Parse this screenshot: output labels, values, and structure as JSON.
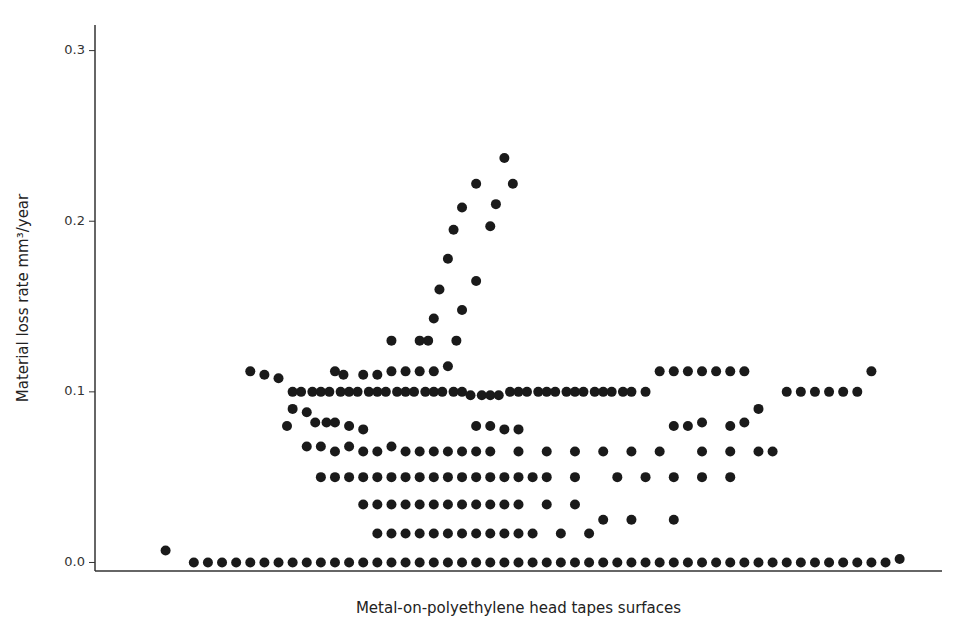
{
  "chart_data": {
    "type": "scatter",
    "xlabel": "Metal-on-polyethylene head tapes surfaces",
    "ylabel": "Material loss rate mm³/year",
    "xlim": [
      0,
      30
    ],
    "ylim": [
      -0.005,
      0.315
    ],
    "yticks": [
      {
        "value": 0.0,
        "label": "0.0"
      },
      0.1,
      0.2,
      0.3
    ],
    "tick_labels": "y",
    "grid": false,
    "color": "#1a1a1a",
    "background_color": "#ffffff",
    "x": [
      14.5,
      13.5,
      14.8,
      13.0,
      14.2,
      12.7,
      14.0,
      12.5,
      13.5,
      12.2,
      13.0,
      12.0,
      12.8,
      11.8,
      11.5,
      10.5,
      8.5,
      8.8,
      9.5,
      10.0,
      10.5,
      11.0,
      11.5,
      12.0,
      12.5,
      20.0,
      20.5,
      21.0,
      21.5,
      22.0,
      22.5,
      23.0,
      27.5,
      5.5,
      6.0,
      6.5,
      7.0,
      7.3,
      7.7,
      8.0,
      8.3,
      8.7,
      9.0,
      9.3,
      9.7,
      10.0,
      10.3,
      10.7,
      11.0,
      11.3,
      11.7,
      12.0,
      12.3,
      12.7,
      13.0,
      13.3,
      13.7,
      14.0,
      14.3,
      14.7,
      15.0,
      15.3,
      15.7,
      16.0,
      16.3,
      16.7,
      17.0,
      17.3,
      17.7,
      18.0,
      18.3,
      18.7,
      19.0,
      19.5,
      24.5,
      25.0,
      25.5,
      26.0,
      26.5,
      27.0,
      7.0,
      7.5,
      7.8,
      8.2,
      8.5,
      9.0,
      9.5,
      6.8,
      13.5,
      14.0,
      14.5,
      15.0,
      20.5,
      21.0,
      21.5,
      22.5,
      23.5,
      23.0,
      7.5,
      8.0,
      8.5,
      9.0,
      9.5,
      10.0,
      10.5,
      11.0,
      11.5,
      12.0,
      12.5,
      13.0,
      13.5,
      14.0,
      15.0,
      16.0,
      17.0,
      18.0,
      19.0,
      20.0,
      21.5,
      22.5,
      23.5,
      24.0,
      8.0,
      8.5,
      9.0,
      9.5,
      10.0,
      10.5,
      11.0,
      11.5,
      12.0,
      12.5,
      13.0,
      13.5,
      14.0,
      14.5,
      15.0,
      15.5,
      16.0,
      17.0,
      18.5,
      19.5,
      20.5,
      21.5,
      22.5,
      9.5,
      10.0,
      10.5,
      11.0,
      11.5,
      12.0,
      12.5,
      13.0,
      13.5,
      14.0,
      14.5,
      15.0,
      16.0,
      17.0,
      18.0,
      19.0,
      20.5,
      10.0,
      10.5,
      11.0,
      11.5,
      12.0,
      12.5,
      13.0,
      13.5,
      14.0,
      14.5,
      15.0,
      15.5,
      16.5,
      17.5,
      2.5,
      3.5,
      4.0,
      4.5,
      5.0,
      5.5,
      6.0,
      6.5,
      7.0,
      7.5,
      8.0,
      8.5,
      9.0,
      9.5,
      10.0,
      10.5,
      11.0,
      11.5,
      12.0,
      12.5,
      13.0,
      13.5,
      14.0,
      14.5,
      15.0,
      15.5,
      16.0,
      16.5,
      17.0,
      17.5,
      18.0,
      18.5,
      19.0,
      19.5,
      20.0,
      20.5,
      21.0,
      21.5,
      22.0,
      22.5,
      23.0,
      23.5,
      24.0,
      24.5,
      25.0,
      25.5,
      26.0,
      26.5,
      27.0,
      27.5,
      28.0,
      28.5
    ],
    "values": [
      0.237,
      0.222,
      0.222,
      0.208,
      0.21,
      0.195,
      0.197,
      0.178,
      0.165,
      0.16,
      0.148,
      0.143,
      0.13,
      0.13,
      0.13,
      0.13,
      0.112,
      0.11,
      0.11,
      0.11,
      0.112,
      0.112,
      0.112,
      0.112,
      0.115,
      0.112,
      0.112,
      0.112,
      0.112,
      0.112,
      0.112,
      0.112,
      0.112,
      0.112,
      0.11,
      0.108,
      0.1,
      0.1,
      0.1,
      0.1,
      0.1,
      0.1,
      0.1,
      0.1,
      0.1,
      0.1,
      0.1,
      0.1,
      0.1,
      0.1,
      0.1,
      0.1,
      0.1,
      0.1,
      0.1,
      0.098,
      0.098,
      0.098,
      0.098,
      0.1,
      0.1,
      0.1,
      0.1,
      0.1,
      0.1,
      0.1,
      0.1,
      0.1,
      0.1,
      0.1,
      0.1,
      0.1,
      0.1,
      0.1,
      0.1,
      0.1,
      0.1,
      0.1,
      0.1,
      0.1,
      0.09,
      0.088,
      0.082,
      0.082,
      0.082,
      0.08,
      0.078,
      0.08,
      0.08,
      0.08,
      0.078,
      0.078,
      0.08,
      0.08,
      0.082,
      0.08,
      0.09,
      0.082,
      0.068,
      0.068,
      0.065,
      0.068,
      0.065,
      0.065,
      0.068,
      0.065,
      0.065,
      0.065,
      0.065,
      0.065,
      0.065,
      0.065,
      0.065,
      0.065,
      0.065,
      0.065,
      0.065,
      0.065,
      0.065,
      0.065,
      0.065,
      0.065,
      0.05,
      0.05,
      0.05,
      0.05,
      0.05,
      0.05,
      0.05,
      0.05,
      0.05,
      0.05,
      0.05,
      0.05,
      0.05,
      0.05,
      0.05,
      0.05,
      0.05,
      0.05,
      0.05,
      0.05,
      0.05,
      0.05,
      0.05,
      0.034,
      0.034,
      0.034,
      0.034,
      0.034,
      0.034,
      0.034,
      0.034,
      0.034,
      0.034,
      0.034,
      0.034,
      0.034,
      0.034,
      0.025,
      0.025,
      0.025,
      0.017,
      0.017,
      0.017,
      0.017,
      0.017,
      0.017,
      0.017,
      0.017,
      0.017,
      0.017,
      0.017,
      0.017,
      0.017,
      0.017,
      0.007,
      0.0,
      0.0,
      0.0,
      0.0,
      0.0,
      0.0,
      0.0,
      0.0,
      0.0,
      0.0,
      0.0,
      0.0,
      0.0,
      0.0,
      0.0,
      0.0,
      0.0,
      0.0,
      0.0,
      0.0,
      0.0,
      0.0,
      0.0,
      0.0,
      0.0,
      0.0,
      0.0,
      0.0,
      0.0,
      0.0,
      0.0,
      0.0,
      0.0,
      0.0,
      0.0,
      0.0,
      0.0,
      0.0,
      0.0,
      0.0,
      0.0,
      0.0,
      0.0,
      0.0,
      0.0,
      0.0,
      0.0,
      0.0,
      0.0,
      0.0,
      0.002
    ]
  }
}
